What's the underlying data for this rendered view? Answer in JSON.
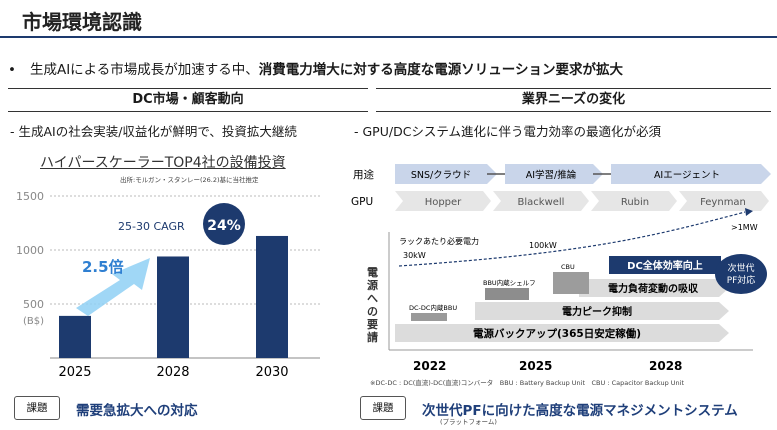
{
  "page": {
    "title": "市場環境認識",
    "bullet_dot": "•",
    "bullet_normal": "生成AIによる市場成長が加速する中、",
    "bullet_bold": "消費電力増大に対する高度な電源ソリューション要求が拡大"
  },
  "left": {
    "header": "DC市場・顧客動向",
    "subtitle": "- 生成AIの社会実装/収益化が鮮明で、投資拡大継続",
    "kadai_label": "課題",
    "kadai_text": "需要急拡大への対応"
  },
  "right": {
    "header": "業界ニーズの変化",
    "subtitle": "- GPU/DCシステム進化に伴う電力効率の最適化が必須",
    "kadai_label": "課題",
    "kadai_text": "次世代PFに向けた高度な電源マネジメントシステム",
    "kadai_ruby": "(プラットフォーム)",
    "footnote": "※DC-DC : DC(直流)-DC(直流)コンバータ　BBU : Battery Backup Unit　CBU : Capacitor Backup Unit"
  },
  "chart_data": {
    "type": "bar",
    "title": "ハイパースケーラーTOP4社の設備投資",
    "source": "出所:モルガン・スタンレー(26.2)基に当社推定",
    "categories": [
      "2025",
      "2028",
      "2030"
    ],
    "values": [
      390,
      940,
      1130
    ],
    "ylim": [
      0,
      1500
    ],
    "yticks": [
      "500",
      "1000",
      "1500"
    ],
    "ylabel": "(B$)",
    "annotations": {
      "multiplier": "2.5倍",
      "cagr_label": "25-30 CAGR",
      "cagr_value": "24%"
    },
    "colors": {
      "bar": "#1d3a6e",
      "accent": "#2f7fd1"
    }
  },
  "diagram": {
    "row_label_use": "用途",
    "row_label_gpu": "GPU",
    "uses": [
      "SNS/クラウド",
      "AI学習/推論",
      "AIエージェント"
    ],
    "gpus": [
      "Hopper",
      "Blackwell",
      "Rubin",
      "Feynman"
    ],
    "vertical_label": "電源への要請",
    "curve_label": "ラックあたり必要電力",
    "power_points": [
      "30kW",
      "100kW",
      ">1MW"
    ],
    "layers": [
      "電源バックアップ(365日安定稼働)",
      "電力ピーク抑制",
      "電力負荷変動の吸収",
      "DC全体効率向上"
    ],
    "next_pf_line1": "次世代",
    "next_pf_line2": "PF対応",
    "device_labels": [
      "DC-DC内蔵BBU",
      "BBU内蔵シェルフ",
      "CBU"
    ],
    "years": [
      "2022",
      "2025",
      "2028"
    ]
  }
}
